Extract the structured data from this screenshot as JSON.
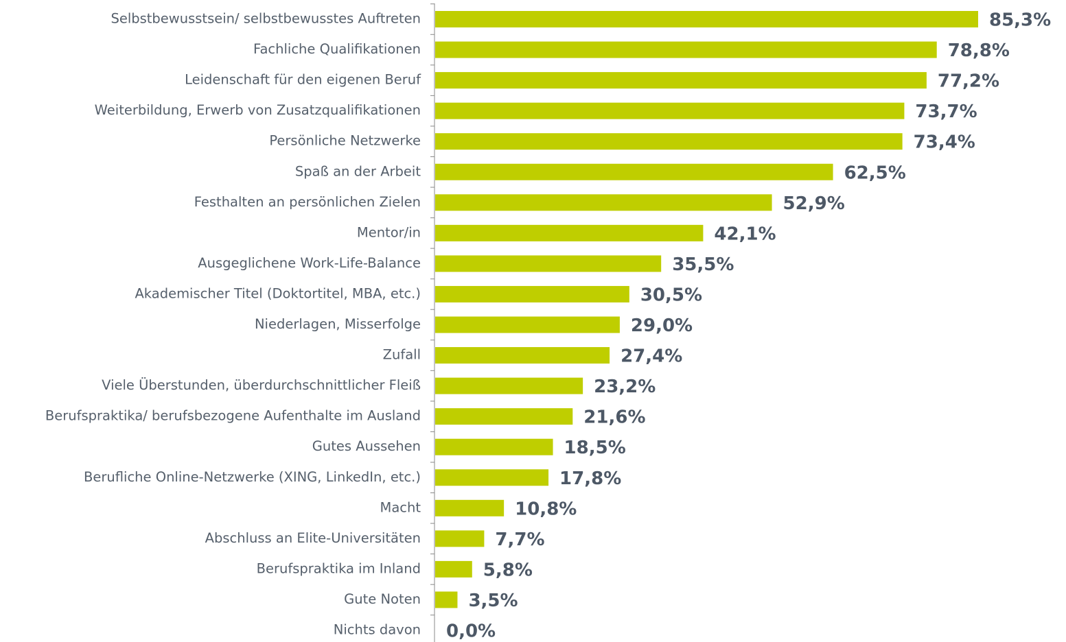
{
  "chart_data": {
    "type": "hbar",
    "color": "#bfce00",
    "categories": [
      "Selbstbewusstsein/ selbstbewusstes Auftreten",
      "Fachliche Qualifikationen",
      "Leidenschaft für den eigenen Beruf",
      "Weiterbildung, Erwerb von Zusatzqualifikationen",
      "Persönliche Netzwerke",
      "Spaß an der Arbeit",
      "Festhalten an persönlichen Zielen",
      "Mentor/in",
      "Ausgeglichene Work-Life-Balance",
      "Akademischer Titel (Doktortitel, MBA, etc.)",
      "Niederlagen, Misserfolge",
      "Zufall",
      "Viele Überstunden, überdurchschnittlicher Fleiß",
      "Berufspraktika/ berufsbezogene Aufenthalte im Ausland",
      "Gutes Aussehen",
      "Berufliche Online-Netzwerke (XING, LinkedIn, etc.)",
      "Macht",
      "Abschluss an Elite-Universitäten",
      "Berufspraktika im Inland",
      "Gute Noten",
      "Nichts davon"
    ],
    "values": [
      85.3,
      78.8,
      77.2,
      73.7,
      73.4,
      62.5,
      52.9,
      42.1,
      35.5,
      30.5,
      29.0,
      27.4,
      23.2,
      21.6,
      18.5,
      17.8,
      10.8,
      7.7,
      5.8,
      3.5,
      0.0
    ],
    "value_labels": [
      "85,3%",
      "78,8%",
      "77,2%",
      "73,7%",
      "73,4%",
      "62,5%",
      "52,9%",
      "42,1%",
      "35,5%",
      "30,5%",
      "29,0%",
      "27,4%",
      "23,2%",
      "21,6%",
      "18,5%",
      "17,8%",
      "10,8%",
      "7,7%",
      "5,8%",
      "3,5%",
      "0,0%"
    ]
  }
}
